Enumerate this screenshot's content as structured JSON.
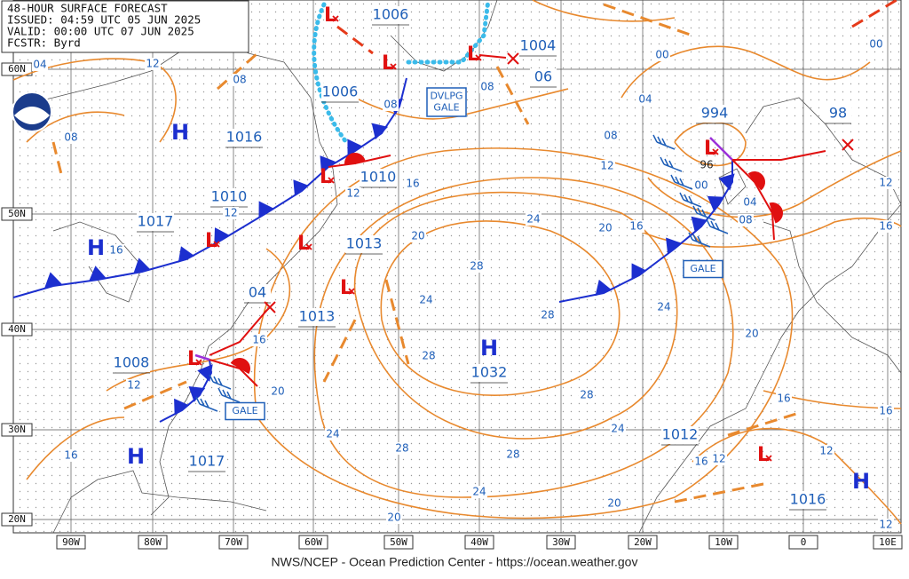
{
  "header": {
    "lines": [
      "48-HOUR SURFACE FORECAST",
      "ISSUED: 04:59 UTC 05 JUN 2025",
      "VALID:  00:00 UTC 07 JUN 2025",
      "FCSTR:  Byrd"
    ]
  },
  "footer": "NWS/NCEP - Ocean Prediction Center - https://ocean.weather.gov",
  "latitude_labels": [
    "60N",
    "50N",
    "40N",
    "30N",
    "20N"
  ],
  "longitude_labels": [
    "90W",
    "80W",
    "70W",
    "60W",
    "50W",
    "40W",
    "30W",
    "20W",
    "10W",
    "0",
    "10E"
  ],
  "highs": [
    {
      "symbol": "H",
      "pressure": "1016"
    },
    {
      "symbol": "H",
      "pressure": "1017"
    },
    {
      "symbol": "H",
      "pressure": "1032"
    },
    {
      "symbol": "H",
      "pressure": "1017"
    },
    {
      "symbol": "H",
      "pressure": "1016"
    }
  ],
  "lows": [
    {
      "symbol": "L",
      "pressure": "1006"
    },
    {
      "symbol": "L",
      "pressure": "1006"
    },
    {
      "symbol": "L",
      "pressure": "1004"
    },
    {
      "symbol": "L",
      "pressure": "994"
    },
    {
      "symbol": "L",
      "pressure": "1010"
    },
    {
      "symbol": "L",
      "pressure": "1010"
    },
    {
      "symbol": "L",
      "pressure": "1013"
    },
    {
      "symbol": "L",
      "pressure": "1013"
    },
    {
      "symbol": "L",
      "pressure": "1008"
    },
    {
      "symbol": "L",
      "pressure": "1012"
    }
  ],
  "forecast_positions": [
    "04",
    "98",
    "06",
    "96"
  ],
  "isobar_labels": [
    "04",
    "12",
    "08",
    "08",
    "08",
    "08",
    "00",
    "00",
    "04",
    "08",
    "12",
    "00",
    "04",
    "08",
    "12",
    "16",
    "16",
    "12",
    "12",
    "16",
    "20",
    "16",
    "24",
    "20",
    "28",
    "24",
    "28",
    "24",
    "20",
    "28",
    "28",
    "24",
    "16",
    "16",
    "12",
    "16",
    "12",
    "28",
    "28",
    "24",
    "24",
    "20",
    "16",
    "12",
    "16",
    "20",
    "20",
    "12"
  ],
  "gale_boxes": [
    [
      "DVLPG",
      "GALE"
    ],
    [
      "GALE"
    ],
    [
      "GALE"
    ]
  ]
}
